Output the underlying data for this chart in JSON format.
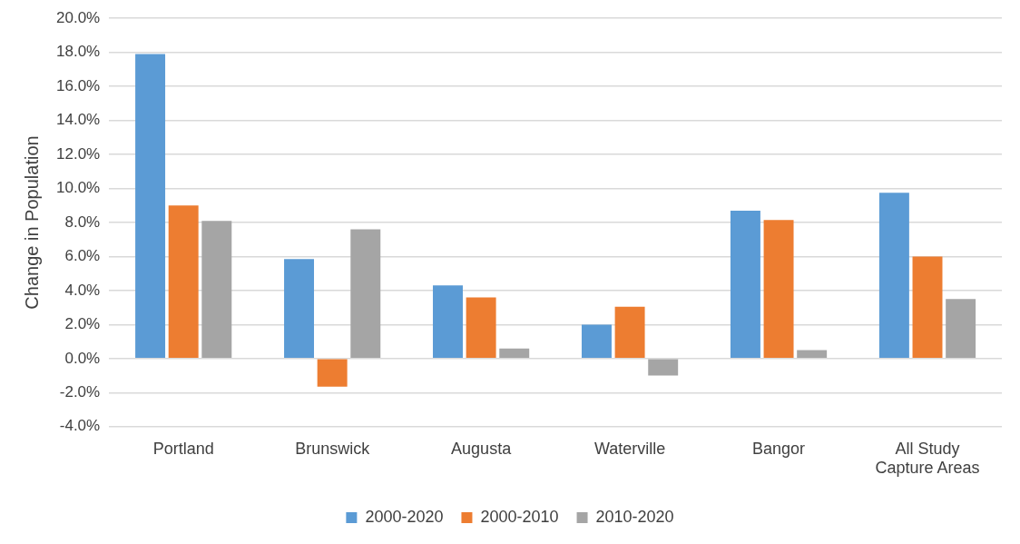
{
  "chart_data": {
    "type": "bar",
    "ylabel": "Change in Population",
    "categories": [
      "Portland",
      "Brunswick",
      "Augusta",
      "Waterville",
      "Bangor",
      "All Study Capture Areas"
    ],
    "series": [
      {
        "name": "2000-2020",
        "color": "#5b9bd5",
        "values": [
          17.9,
          5.85,
          4.3,
          2.0,
          8.7,
          9.75
        ]
      },
      {
        "name": "2000-2010",
        "color": "#ed7d31",
        "values": [
          9.0,
          -1.65,
          3.6,
          3.05,
          8.15,
          6.0
        ]
      },
      {
        "name": "2010-2020",
        "color": "#a5a5a5",
        "values": [
          8.1,
          7.6,
          0.6,
          -1.0,
          0.5,
          3.5
        ]
      }
    ],
    "ylim": [
      -4,
      20
    ],
    "yticks": [
      {
        "value": -4,
        "label": "-4.0%"
      },
      {
        "value": -2,
        "label": "-2.0%"
      },
      {
        "value": 0,
        "label": "0.0%"
      },
      {
        "value": 2,
        "label": "2.0%"
      },
      {
        "value": 4,
        "label": "4.0%"
      },
      {
        "value": 6,
        "label": "6.0%"
      },
      {
        "value": 8,
        "label": "8.0%"
      },
      {
        "value": 10,
        "label": "10.0%"
      },
      {
        "value": 12,
        "label": "12.0%"
      },
      {
        "value": 14,
        "label": "14.0%"
      },
      {
        "value": 16,
        "label": "16.0%"
      },
      {
        "value": 18,
        "label": "18.0%"
      },
      {
        "value": 20,
        "label": "20.0%"
      }
    ],
    "grid": "y",
    "legend": "bottom"
  }
}
